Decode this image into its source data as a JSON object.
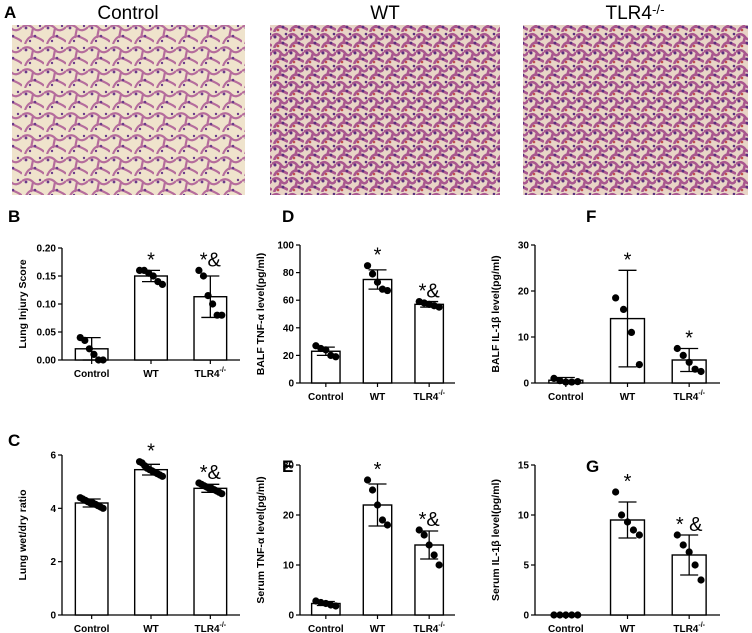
{
  "panel_a": {
    "label": "A",
    "titles": [
      "Control",
      "WT",
      "TLR4-/-"
    ]
  },
  "chart_data": [
    {
      "type": "bar",
      "panel": "B",
      "ylabel": "Lung Injury Score",
      "categories": [
        "Control",
        "WT",
        "TLR4-/-"
      ],
      "values": [
        0.02,
        0.15,
        0.113
      ],
      "errors": [
        0.02,
        0.01,
        0.037
      ],
      "points": [
        [
          0.04,
          0.035,
          0.02,
          0.01,
          0.0,
          0.0
        ],
        [
          0.16,
          0.16,
          0.155,
          0.15,
          0.14,
          0.135
        ],
        [
          0.16,
          0.15,
          0.115,
          0.1,
          0.08,
          0.08
        ]
      ],
      "annotations": [
        null,
        "*",
        "*&"
      ],
      "ylim": [
        0,
        0.2
      ],
      "yticks": [
        {
          "value": 0,
          "label": "0.00"
        },
        {
          "value": 0.05,
          "label": "0.05"
        },
        {
          "value": 0.1,
          "label": "0.10"
        },
        {
          "value": 0.15,
          "label": "0.15"
        },
        {
          "value": 0.2,
          "label": "0.20"
        }
      ]
    },
    {
      "type": "bar",
      "panel": "D",
      "ylabel": "BALF TNF-α level(pg/ml)",
      "categories": [
        "Control",
        "WT",
        "TLR4-/-"
      ],
      "values": [
        23,
        75,
        57
      ],
      "errors": [
        3,
        7,
        2
      ],
      "points": [
        [
          27,
          25,
          24,
          20,
          19
        ],
        [
          85,
          79,
          73,
          68,
          67
        ],
        [
          59,
          58,
          57,
          56,
          55
        ]
      ],
      "annotations": [
        null,
        "*",
        "*&"
      ],
      "ylim": [
        0,
        100
      ],
      "yticks": [
        0,
        20,
        40,
        60,
        80,
        100
      ]
    },
    {
      "type": "bar",
      "panel": "F",
      "ylabel": "BALF IL-1β level(pg/ml)",
      "categories": [
        "Control",
        "WT",
        "TLR4-/-"
      ],
      "values": [
        0.6,
        14,
        5
      ],
      "errors": [
        0.6,
        10.5,
        2.5
      ],
      "points": [
        [
          1,
          0.5,
          0.2,
          0.2,
          0.3
        ],
        [
          18.5,
          16,
          11,
          4
        ],
        [
          7.5,
          6,
          4.5,
          3,
          2.5
        ]
      ],
      "annotations": [
        null,
        "*",
        "*"
      ],
      "ylim": [
        0,
        30
      ],
      "yticks": [
        0,
        10,
        20,
        30
      ]
    },
    {
      "type": "bar",
      "panel": "C",
      "ylabel": "Lung wet/dry ratio",
      "categories": [
        "Control",
        "WT",
        "TLR4-/-"
      ],
      "values": [
        4.2,
        5.45,
        4.75
      ],
      "errors": [
        0.15,
        0.2,
        0.15
      ],
      "points": [
        [
          4.4,
          4.35,
          4.3,
          4.25,
          4.2,
          4.2,
          4.15,
          4.1,
          4.05,
          4.0
        ],
        [
          5.75,
          5.7,
          5.6,
          5.5,
          5.45,
          5.4,
          5.35,
          5.3,
          5.25,
          5.2
        ],
        [
          4.95,
          4.9,
          4.85,
          4.8,
          4.75,
          4.75,
          4.7,
          4.65,
          4.6,
          4.55
        ]
      ],
      "annotations": [
        null,
        "*",
        "*&"
      ],
      "ylim": [
        0,
        6
      ],
      "yticks": [
        0,
        2,
        4,
        6
      ]
    },
    {
      "type": "bar",
      "panel": "E",
      "ylabel": "Serum TNF-α level(pg/ml)",
      "categories": [
        "Control",
        "WT",
        "TLR4-/-"
      ],
      "values": [
        2.3,
        22,
        14
      ],
      "errors": [
        0.4,
        4.2,
        2.8
      ],
      "points": [
        [
          2.8,
          2.5,
          2.3,
          2,
          1.8
        ],
        [
          27,
          25,
          22,
          19,
          18
        ],
        [
          17,
          16,
          14,
          12,
          10
        ]
      ],
      "annotations": [
        null,
        "*",
        "*&"
      ],
      "ylim": [
        0,
        30
      ],
      "yticks": [
        0,
        10,
        20,
        30
      ]
    },
    {
      "type": "bar",
      "panel": "G",
      "ylabel": "Serum IL-1β level(pg/ml)",
      "categories": [
        "Control",
        "WT",
        "TLR4-/-"
      ],
      "values": [
        0,
        9.5,
        6
      ],
      "errors": [
        0,
        1.8,
        2
      ],
      "points": [
        [
          0,
          0,
          0,
          0,
          0
        ],
        [
          12.3,
          10,
          9.3,
          8.5,
          8
        ],
        [
          8,
          7,
          6.3,
          5,
          3.5
        ]
      ],
      "annotations": [
        null,
        "*",
        "* &"
      ],
      "ylim": [
        0,
        15
      ],
      "yticks": [
        0,
        5,
        10,
        15
      ]
    }
  ]
}
